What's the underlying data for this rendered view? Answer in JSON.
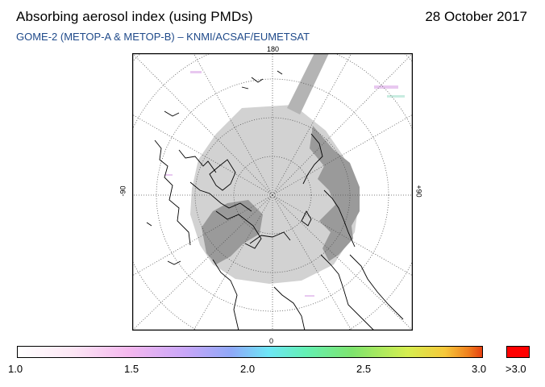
{
  "header": {
    "title": "Absorbing aerosol index (using PMDs)",
    "date": "28 October 2017",
    "subtitle": "GOME-2 (METOP-A & METOP-B)  –  KNMI/ACSAF/EUMETSAT"
  },
  "map": {
    "projection": "polar-stereographic-north",
    "longitude_labels": {
      "top": "180",
      "bottom": "0",
      "left": "-90",
      "right": "+90"
    },
    "colors": {
      "no_data_dark": "#9a9a9a",
      "no_data_light": "#d2d2d2",
      "coast": "#000000",
      "graticule": "#555555"
    }
  },
  "colorbar": {
    "tick_labels": [
      "1.0",
      "1.5",
      "2.0",
      "2.5",
      "3.0"
    ],
    "over_label": ">3.0",
    "over_color": "#ff0000",
    "min": 1.0,
    "max": 3.0
  }
}
